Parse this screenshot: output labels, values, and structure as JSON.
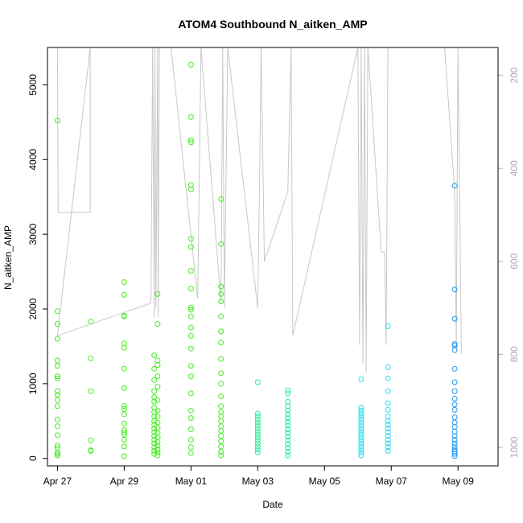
{
  "chart_data": {
    "type": "scatter",
    "title": "ATOM4 Southbound N_aitken_AMP",
    "xlabel": "Date",
    "ylabel": "N_aitken_AMP",
    "x_ticks": [
      "Apr 27",
      "Apr 29",
      "May 01",
      "May 03",
      "May 05",
      "May 07",
      "May 09"
    ],
    "x_tick_days": [
      0,
      2,
      4,
      6,
      8,
      10,
      12
    ],
    "xlim_days": [
      -0.3,
      13.2
    ],
    "y_ticks": [
      0,
      1000,
      2000,
      3000,
      4000,
      5000
    ],
    "ylim": [
      -100,
      5500
    ],
    "right_axis": {
      "ticks": [
        "200",
        "400",
        "600",
        "800",
        "1000"
      ],
      "values": [
        200,
        400,
        600,
        800,
        1000
      ],
      "range_top": 140,
      "range_bottom": 1040,
      "color": "#aaaaaa"
    },
    "grid": false,
    "series": [
      {
        "values": [
          [
            0.0,
            4520
          ],
          [
            0.0,
            1970
          ],
          [
            0.0,
            1800
          ],
          [
            0.0,
            1600
          ],
          [
            0.0,
            1310
          ],
          [
            0.0,
            1240
          ],
          [
            0.0,
            1100
          ],
          [
            0.0,
            1070
          ],
          [
            0.0,
            900
          ],
          [
            0.0,
            850
          ],
          [
            0.0,
            780
          ],
          [
            0.0,
            700
          ],
          [
            0.0,
            520
          ],
          [
            0.0,
            430
          ],
          [
            0.0,
            310
          ],
          [
            0.0,
            170
          ],
          [
            0.0,
            140
          ],
          [
            0.0,
            80
          ],
          [
            0.0,
            60
          ],
          [
            0.0,
            40
          ],
          [
            1.0,
            1830
          ],
          [
            1.0,
            1340
          ],
          [
            1.0,
            900
          ],
          [
            1.0,
            240
          ],
          [
            1.0,
            110
          ],
          [
            1.0,
            100
          ],
          [
            2.0,
            2360
          ],
          [
            2.0,
            2190
          ],
          [
            2.0,
            1910
          ],
          [
            2.0,
            1900
          ],
          [
            2.0,
            1540
          ],
          [
            2.0,
            1480
          ],
          [
            2.0,
            1200
          ],
          [
            2.0,
            940
          ],
          [
            2.0,
            700
          ],
          [
            2.0,
            660
          ],
          [
            2.0,
            590
          ],
          [
            2.0,
            470
          ],
          [
            2.0,
            380
          ],
          [
            2.0,
            350
          ],
          [
            2.0,
            320
          ],
          [
            2.0,
            250
          ],
          [
            2.0,
            160
          ],
          [
            2.0,
            30
          ],
          [
            2.9,
            1380
          ],
          [
            2.9,
            1200
          ],
          [
            2.9,
            1050
          ],
          [
            2.9,
            900
          ],
          [
            2.9,
            820
          ],
          [
            2.9,
            760
          ],
          [
            2.9,
            680
          ],
          [
            2.9,
            620
          ],
          [
            2.9,
            560
          ],
          [
            2.9,
            500
          ],
          [
            2.9,
            450
          ],
          [
            2.9,
            400
          ],
          [
            2.9,
            350
          ],
          [
            2.9,
            300
          ],
          [
            2.9,
            250
          ],
          [
            2.9,
            200
          ],
          [
            2.9,
            150
          ],
          [
            2.9,
            100
          ],
          [
            2.9,
            60
          ],
          [
            3.0,
            2200
          ],
          [
            3.0,
            1800
          ],
          [
            3.0,
            1310
          ],
          [
            3.0,
            1250
          ],
          [
            3.0,
            1100
          ],
          [
            3.0,
            960
          ],
          [
            3.0,
            780
          ],
          [
            3.0,
            640
          ],
          [
            3.0,
            560
          ],
          [
            3.0,
            480
          ],
          [
            3.0,
            410
          ],
          [
            3.0,
            340
          ],
          [
            3.0,
            280
          ],
          [
            3.0,
            220
          ],
          [
            3.0,
            170
          ],
          [
            3.0,
            120
          ],
          [
            3.0,
            80
          ],
          [
            3.0,
            40
          ],
          [
            4.0,
            5270
          ],
          [
            4.0,
            4570
          ],
          [
            4.0,
            4260
          ],
          [
            4.0,
            4230
          ],
          [
            4.0,
            3660
          ],
          [
            4.0,
            3600
          ],
          [
            4.0,
            2940
          ],
          [
            4.0,
            2830
          ],
          [
            4.0,
            2510
          ],
          [
            4.0,
            2270
          ],
          [
            4.0,
            2020
          ],
          [
            4.0,
            1990
          ],
          [
            4.0,
            1900
          ],
          [
            4.0,
            1750
          ],
          [
            4.0,
            1640
          ],
          [
            4.0,
            1470
          ],
          [
            4.0,
            1240
          ],
          [
            4.0,
            1100
          ],
          [
            4.0,
            870
          ],
          [
            4.0,
            640
          ],
          [
            4.0,
            540
          ],
          [
            4.0,
            390
          ],
          [
            4.0,
            250
          ],
          [
            4.0,
            150
          ],
          [
            4.0,
            70
          ],
          [
            4.9,
            3470
          ],
          [
            4.9,
            2870
          ],
          [
            4.9,
            2300
          ],
          [
            4.9,
            2200
          ],
          [
            4.9,
            2100
          ],
          [
            4.9,
            1900
          ],
          [
            4.9,
            1700
          ],
          [
            4.9,
            1550
          ],
          [
            4.9,
            1330
          ],
          [
            4.9,
            1140
          ],
          [
            4.9,
            1000
          ],
          [
            4.9,
            830
          ],
          [
            4.9,
            700
          ],
          [
            4.9,
            620
          ],
          [
            4.9,
            560
          ],
          [
            4.9,
            500
          ],
          [
            4.9,
            430
          ],
          [
            4.9,
            370
          ],
          [
            4.9,
            300
          ],
          [
            4.9,
            230
          ],
          [
            4.9,
            160
          ],
          [
            4.9,
            90
          ],
          [
            4.9,
            40
          ]
        ]
      },
      {
        "values": [
          [
            6.0,
            1020
          ],
          [
            6.0,
            600
          ],
          [
            6.0,
            560
          ],
          [
            6.0,
            520
          ],
          [
            6.0,
            480
          ],
          [
            6.0,
            440
          ],
          [
            6.0,
            400
          ],
          [
            6.0,
            360
          ],
          [
            6.0,
            320
          ],
          [
            6.0,
            280
          ],
          [
            6.0,
            240
          ],
          [
            6.0,
            200
          ],
          [
            6.0,
            160
          ],
          [
            6.0,
            120
          ],
          [
            6.0,
            80
          ],
          [
            6.9,
            910
          ],
          [
            6.9,
            870
          ],
          [
            6.9,
            760
          ],
          [
            6.9,
            700
          ],
          [
            6.9,
            640
          ],
          [
            6.9,
            590
          ],
          [
            6.9,
            540
          ],
          [
            6.9,
            490
          ],
          [
            6.9,
            440
          ],
          [
            6.9,
            390
          ],
          [
            6.9,
            340
          ],
          [
            6.9,
            290
          ],
          [
            6.9,
            240
          ],
          [
            6.9,
            190
          ],
          [
            6.9,
            140
          ],
          [
            6.9,
            90
          ],
          [
            6.9,
            40
          ]
        ]
      },
      {
        "values": [
          [
            9.1,
            1060
          ],
          [
            9.1,
            680
          ],
          [
            9.1,
            640
          ],
          [
            9.1,
            600
          ],
          [
            9.1,
            560
          ],
          [
            9.1,
            520
          ],
          [
            9.1,
            480
          ],
          [
            9.1,
            440
          ],
          [
            9.1,
            400
          ],
          [
            9.1,
            360
          ],
          [
            9.1,
            320
          ],
          [
            9.1,
            280
          ],
          [
            9.1,
            240
          ],
          [
            9.1,
            200
          ],
          [
            9.1,
            160
          ],
          [
            9.1,
            120
          ],
          [
            9.1,
            80
          ],
          [
            9.1,
            40
          ],
          [
            9.9,
            1770
          ],
          [
            9.9,
            1220
          ],
          [
            9.9,
            1070
          ],
          [
            9.9,
            900
          ],
          [
            9.9,
            740
          ],
          [
            9.9,
            650
          ],
          [
            9.9,
            560
          ],
          [
            9.9,
            500
          ],
          [
            9.9,
            450
          ],
          [
            9.9,
            400
          ],
          [
            9.9,
            350
          ],
          [
            9.9,
            300
          ],
          [
            9.9,
            250
          ],
          [
            9.9,
            200
          ],
          [
            9.9,
            150
          ],
          [
            9.9,
            100
          ]
        ]
      },
      {
        "values": [
          [
            11.9,
            3650
          ],
          [
            11.9,
            2260
          ],
          [
            11.9,
            1870
          ],
          [
            11.9,
            1530
          ],
          [
            11.9,
            1510
          ],
          [
            11.9,
            1450
          ],
          [
            11.9,
            1200
          ],
          [
            11.9,
            1020
          ],
          [
            11.9,
            900
          ],
          [
            11.9,
            800
          ],
          [
            11.9,
            720
          ],
          [
            11.9,
            650
          ],
          [
            11.9,
            550
          ],
          [
            11.9,
            480
          ],
          [
            11.9,
            420
          ],
          [
            11.9,
            360
          ],
          [
            11.9,
            300
          ],
          [
            11.9,
            250
          ],
          [
            11.9,
            200
          ],
          [
            11.9,
            160
          ],
          [
            11.9,
            120
          ],
          [
            11.9,
            90
          ],
          [
            11.9,
            60
          ],
          [
            11.9,
            30
          ]
        ]
      }
    ],
    "point_colors": [
      "#44ee22",
      "#22ee99",
      "#22ddee",
      "#2299ee"
    ],
    "altitude_line": {
      "color": "#c8c8c8",
      "points": [
        [
          0.0,
          140
        ],
        [
          0.02,
          495
        ],
        [
          0.98,
          495
        ],
        [
          0.98,
          140
        ],
        [
          0.0,
          760
        ],
        [
          2.8,
          690
        ],
        [
          2.85,
          140
        ],
        [
          2.9,
          720
        ],
        [
          2.92,
          140
        ],
        [
          2.95,
          700
        ],
        [
          3.0,
          140
        ],
        [
          3.02,
          720
        ],
        [
          3.05,
          140
        ],
        [
          3.4,
          140
        ],
        [
          4.2,
          680
        ],
        [
          4.3,
          140
        ],
        [
          4.9,
          690
        ],
        [
          4.95,
          140
        ],
        [
          5.0,
          700
        ],
        [
          5.1,
          140
        ],
        [
          6.0,
          700
        ],
        [
          6.05,
          450
        ],
        [
          6.1,
          140
        ],
        [
          6.2,
          600
        ],
        [
          6.9,
          450
        ],
        [
          7.0,
          140
        ],
        [
          7.05,
          760
        ],
        [
          9.0,
          140
        ],
        [
          9.05,
          780
        ],
        [
          9.1,
          140
        ],
        [
          9.15,
          820
        ],
        [
          9.2,
          140
        ],
        [
          9.25,
          840
        ],
        [
          9.3,
          140
        ],
        [
          9.7,
          580
        ],
        [
          9.8,
          580
        ],
        [
          9.85,
          780
        ],
        [
          9.9,
          140
        ],
        [
          10.0,
          140
        ],
        [
          11.6,
          140
        ],
        [
          11.9,
          450
        ],
        [
          11.95,
          790
        ],
        [
          12.0,
          140
        ],
        [
          12.1,
          800
        ]
      ]
    }
  }
}
